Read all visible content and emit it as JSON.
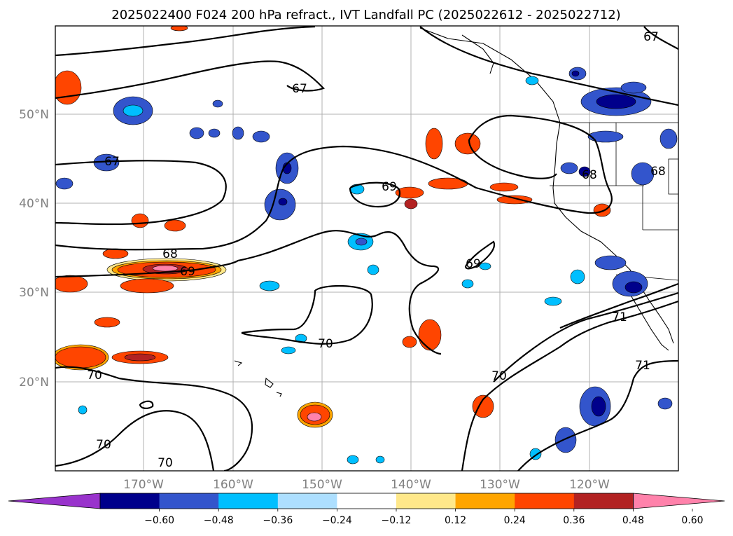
{
  "title": "2025022400 F024 200 hPa refract., IVT Landfall PC (2025022612 - 2025022712)",
  "map": {
    "lat_labels": [
      "50°N",
      "40°N",
      "30°N",
      "20°N"
    ],
    "lon_labels": [
      "170°W",
      "160°W",
      "150°W",
      "140°W",
      "130°W",
      "120°W"
    ],
    "contour_labels": [
      "67",
      "67",
      "67",
      "68",
      "69",
      "69",
      "69",
      "68",
      "68",
      "70",
      "70",
      "70",
      "70",
      "70",
      "71",
      "71"
    ]
  },
  "colorbar": {
    "colors": [
      "#9933cc",
      "#00008b",
      "#3355cc",
      "#00bfff",
      "#addfff",
      "#ffffff",
      "#ffe88a",
      "#ffa500",
      "#ff4500",
      "#b22222",
      "#ff82ab"
    ],
    "tick_labels": [
      "−0.60",
      "−0.48",
      "−0.36",
      "−0.24",
      "−0.12",
      "0.12",
      "0.24",
      "0.36",
      "0.48",
      "0.60"
    ]
  }
}
